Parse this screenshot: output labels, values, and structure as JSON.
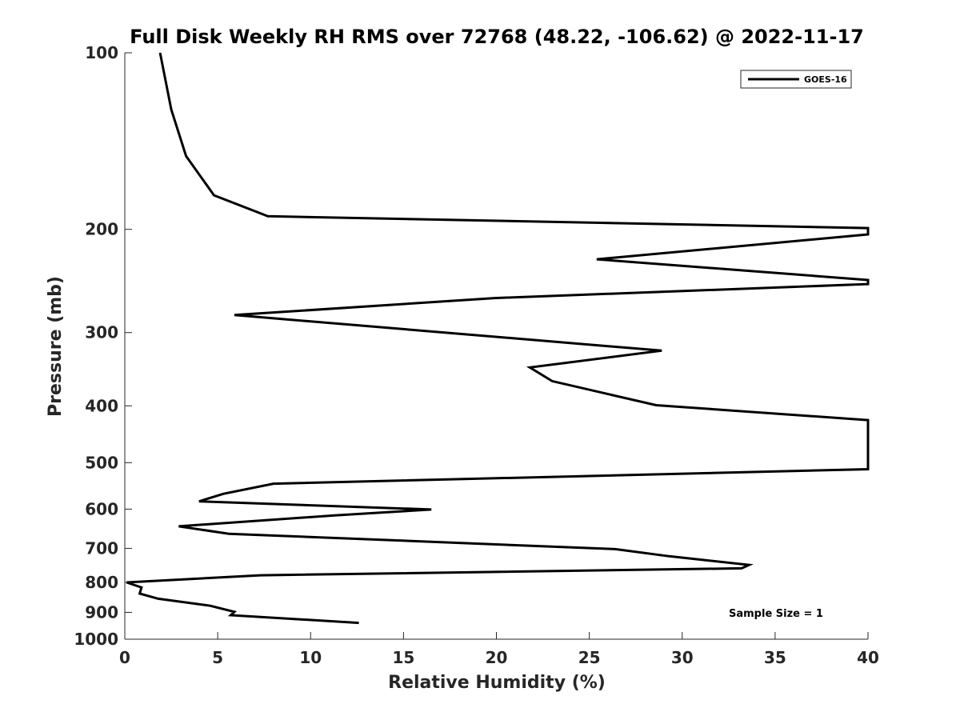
{
  "chart_data": {
    "type": "line",
    "title": "Full Disk Weekly RH RMS over 72768 (48.22, -106.62) @ 2022-11-17",
    "xlabel": "Relative Humidity (%)",
    "ylabel": "Pressure (mb)",
    "xlim": [
      0,
      40
    ],
    "ylim": [
      100,
      1000
    ],
    "y_scale": "log",
    "y_reversed": true,
    "grid": false,
    "legend_position": "top-right",
    "x_ticks": [
      0,
      5,
      10,
      15,
      20,
      25,
      30,
      35,
      40
    ],
    "x_tick_labels": [
      "0",
      "5",
      "10",
      "15",
      "20",
      "25",
      "30",
      "35",
      "40"
    ],
    "y_ticks": [
      100,
      200,
      300,
      400,
      500,
      600,
      700,
      800,
      900,
      1000
    ],
    "y_tick_labels": [
      "100",
      "200",
      "300",
      "400",
      "500",
      "600",
      "700",
      "800",
      "900",
      "1000"
    ],
    "annotation": "Sample Size = 1",
    "series": [
      {
        "name": "GOES-16",
        "color": "#000000",
        "points": [
          [
            1.9,
            100
          ],
          [
            2.5,
            125
          ],
          [
            3.3,
            150
          ],
          [
            4.8,
            175
          ],
          [
            7.7,
            190
          ],
          [
            40,
            199
          ],
          [
            40,
            204
          ],
          [
            25.4,
            225
          ],
          [
            40,
            244
          ],
          [
            40,
            248
          ],
          [
            19.9,
            262
          ],
          [
            5.9,
            280
          ],
          [
            28.9,
            322
          ],
          [
            21.8,
            344
          ],
          [
            23.0,
            363
          ],
          [
            28.6,
            399
          ],
          [
            40,
            423
          ],
          [
            40,
            513
          ],
          [
            8.0,
            543
          ],
          [
            5.3,
            565
          ],
          [
            4.0,
            582
          ],
          [
            16.5,
            601
          ],
          [
            11.3,
            615
          ],
          [
            2.9,
            642
          ],
          [
            5.6,
            661
          ],
          [
            26.4,
            702
          ],
          [
            29.3,
            722
          ],
          [
            33.6,
            747
          ],
          [
            33.2,
            757
          ],
          [
            7.3,
            778
          ],
          [
            0.1,
            800
          ],
          [
            0.9,
            816
          ],
          [
            0.8,
            836
          ],
          [
            1.8,
            853
          ],
          [
            4.6,
            877
          ],
          [
            5.9,
            898
          ],
          [
            5.7,
            910
          ],
          [
            12.6,
            938
          ]
        ]
      }
    ]
  }
}
